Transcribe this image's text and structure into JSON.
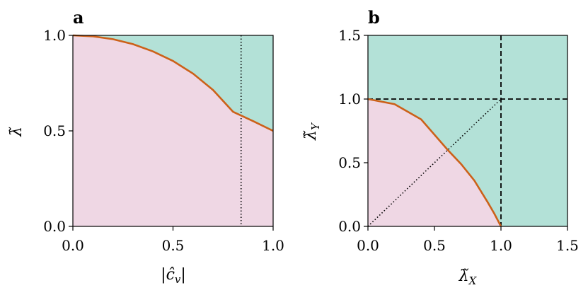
{
  "colors": {
    "region_upper": "#b3e1d7",
    "region_lower": "#efd7e4",
    "boundary_curve": "#cc6119",
    "reference_lines": "#000000"
  },
  "chart_data": [
    {
      "panel": "a",
      "type": "area",
      "xlabel": "|ĉ",
      "xlabel_sub": "v",
      "xlabel_end": "|",
      "ylabel": "λ̃",
      "xlim": [
        0,
        1
      ],
      "ylim": [
        0,
        1
      ],
      "xticks": [
        "0.0",
        "0.5",
        "1.0"
      ],
      "xtick_values": [
        0,
        0.5,
        1
      ],
      "yticks": [
        "0.0",
        "0.5",
        "1.0"
      ],
      "ytick_values": [
        0,
        0.5,
        1
      ],
      "grid": false,
      "boundary": {
        "x": [
          0,
          0.1,
          0.2,
          0.3,
          0.4,
          0.5,
          0.6,
          0.7,
          0.8,
          0.9,
          1.0
        ],
        "y": [
          1.0,
          0.995,
          0.98,
          0.954,
          0.916,
          0.866,
          0.8,
          0.714,
          0.6,
          0.551,
          0.5
        ]
      },
      "vertical_line": {
        "x": 0.84,
        "style": "dotted"
      }
    },
    {
      "panel": "b",
      "type": "area",
      "xlabel": "λ̃",
      "xlabel_sub": "X",
      "ylabel": "λ̃",
      "ylabel_sub": "Y",
      "xlim": [
        0,
        1.5
      ],
      "ylim": [
        0,
        1.5
      ],
      "xticks": [
        "0.0",
        "0.5",
        "1.0",
        "1.5"
      ],
      "xtick_values": [
        0,
        0.5,
        1,
        1.5
      ],
      "yticks": [
        "0.0",
        "0.5",
        "1.0",
        "1.5"
      ],
      "ytick_values": [
        0,
        0.5,
        1,
        1.5
      ],
      "grid": false,
      "boundary": {
        "x": [
          0,
          0.2,
          0.4,
          0.6,
          0.7,
          0.8,
          0.9,
          0.95,
          1.0
        ],
        "y": [
          1.0,
          0.96,
          0.84,
          0.6,
          0.49,
          0.36,
          0.19,
          0.1,
          0.0
        ]
      },
      "dashed_lines": {
        "x": 1.0,
        "y": 1.0
      },
      "diagonal": {
        "x": [
          0,
          1.0
        ],
        "y": [
          0,
          1.0
        ],
        "style": "dotted"
      }
    }
  ]
}
